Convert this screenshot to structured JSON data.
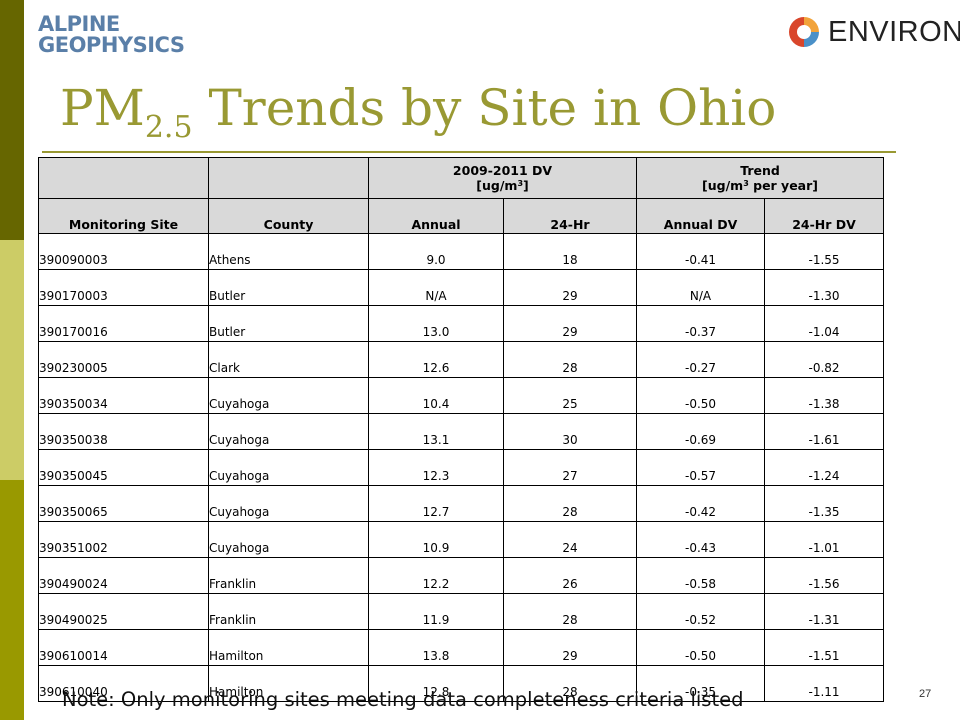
{
  "logos": {
    "left_line1": "ALPINE",
    "left_line2": "GEOPHYSICS",
    "right_word": "ENVIRON"
  },
  "title": {
    "main": "PM",
    "subscript": "2.5",
    "rest": " Trends by Site in Ohio"
  },
  "table": {
    "group_headers": {
      "dv_line1": "2009-2011 DV",
      "dv_line2_pre": "[ug/m",
      "dv_sup": "3",
      "dv_line2_post": "]",
      "trend_line1": "Trend",
      "trend_line2_pre": "[ug/m",
      "trend_sup": "3",
      "trend_line2_post": " per year]"
    },
    "columns": [
      "Monitoring Site",
      "County",
      "Annual",
      "24-Hr",
      "Annual DV",
      "24-Hr DV"
    ],
    "rows": [
      [
        "390090003",
        "Athens",
        "9.0",
        "18",
        "-0.41",
        "-1.55"
      ],
      [
        "390170003",
        "Butler",
        "N/A",
        "29",
        "N/A",
        "-1.30"
      ],
      [
        "390170016",
        "Butler",
        "13.0",
        "29",
        "-0.37",
        "-1.04"
      ],
      [
        "390230005",
        "Clark",
        "12.6",
        "28",
        "-0.27",
        "-0.82"
      ],
      [
        "390350034",
        "Cuyahoga",
        "10.4",
        "25",
        "-0.50",
        "-1.38"
      ],
      [
        "390350038",
        "Cuyahoga",
        "13.1",
        "30",
        "-0.69",
        "-1.61"
      ],
      [
        "390350045",
        "Cuyahoga",
        "12.3",
        "27",
        "-0.57",
        "-1.24"
      ],
      [
        "390350065",
        "Cuyahoga",
        "12.7",
        "28",
        "-0.42",
        "-1.35"
      ],
      [
        "390351002",
        "Cuyahoga",
        "10.9",
        "24",
        "-0.43",
        "-1.01"
      ],
      [
        "390490024",
        "Franklin",
        "12.2",
        "26",
        "-0.58",
        "-1.56"
      ],
      [
        "390490025",
        "Franklin",
        "11.9",
        "28",
        "-0.52",
        "-1.31"
      ],
      [
        "390610014",
        "Hamilton",
        "13.8",
        "29",
        "-0.50",
        "-1.51"
      ],
      [
        "390610040",
        "Hamilton",
        "12.8",
        "28",
        "-0.35",
        "-1.11"
      ]
    ]
  },
  "note": "Note: Only monitoring sites meeting data completeness criteria listed",
  "page_number": "27",
  "colors": {
    "title": "#999933",
    "sidebar_dark": "#666600",
    "sidebar_light": "#cccc66",
    "sidebar_mid": "#999900",
    "header_fill": "#d9d9d9",
    "logo_blue": "#5a7fa8",
    "environ_red": "#d9462b",
    "environ_orange": "#f2a33a",
    "environ_blue": "#4a90c8"
  }
}
